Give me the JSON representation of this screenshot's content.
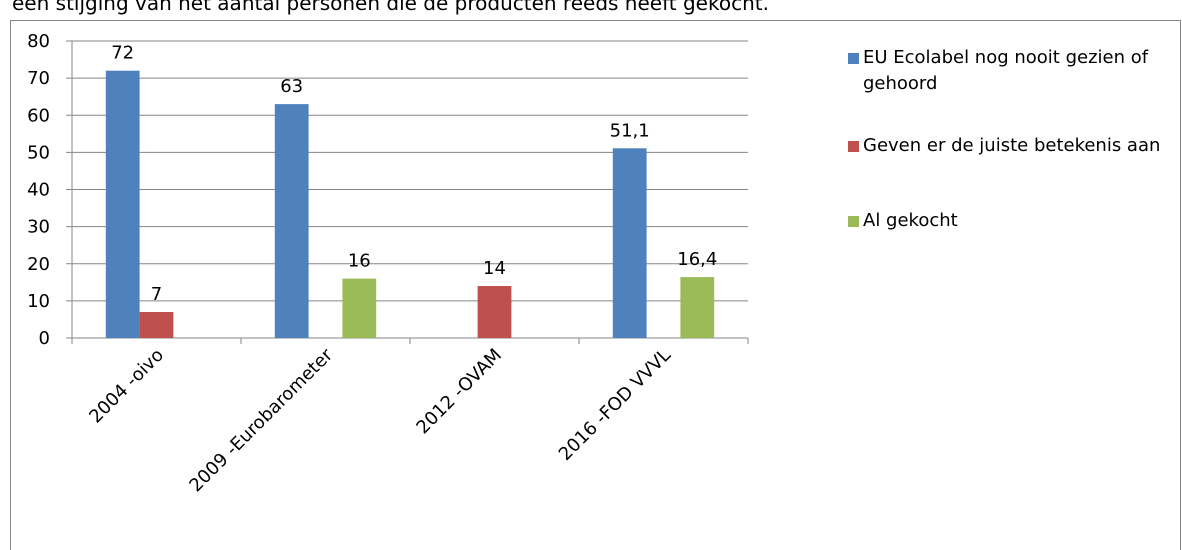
{
  "intro": "een stijging van het aantal personen die de producten reeds heeft gekocht.",
  "chart_data": {
    "type": "bar",
    "categories": [
      "2004 -oivo",
      "2009 -Eurobarometer",
      "2012 -OVAM",
      "2016 -FOD VVVL"
    ],
    "series": [
      {
        "name": "EU Ecolabel nog nooit gezien of gehoord",
        "color": "#4f81bd",
        "values": [
          72,
          63,
          null,
          51.1
        ],
        "value_labels": [
          "72",
          "63",
          null,
          "51,1"
        ]
      },
      {
        "name": "Geven er de juiste betekenis aan",
        "color": "#c0504d",
        "values": [
          7,
          null,
          14,
          null
        ],
        "value_labels": [
          "7",
          null,
          "14",
          null
        ]
      },
      {
        "name": "Al gekocht",
        "color": "#9bbb59",
        "values": [
          null,
          16,
          null,
          16.4
        ],
        "value_labels": [
          null,
          "16",
          null,
          "16,4"
        ]
      }
    ],
    "ylim": [
      0,
      80
    ],
    "yticks": [
      0,
      10,
      20,
      30,
      40,
      50,
      60,
      70,
      80
    ],
    "grid": true,
    "legend": "right"
  }
}
